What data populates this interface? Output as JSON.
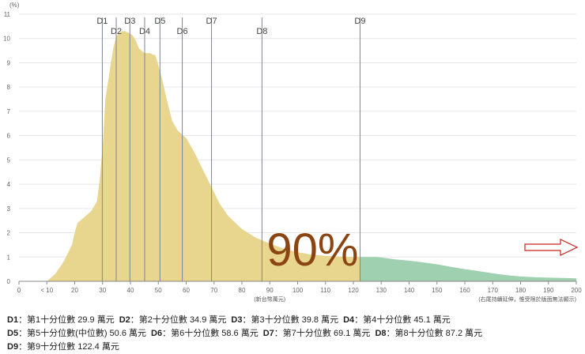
{
  "chart_data": {
    "type": "area",
    "y_unit_label": "(%)",
    "x_unit_label": "(新台幣萬元)",
    "x_note": "(右尾持續延伸，惟受限於版面無法顯示)",
    "x_ticks": [
      "0",
      "< 10",
      "20",
      "30",
      "40",
      "50",
      "60",
      "70",
      "80",
      "90",
      "100",
      "110",
      "120",
      "130",
      "140",
      "150",
      "160",
      "170",
      "180",
      "190",
      "200"
    ],
    "y_ticks": [
      0,
      1,
      2,
      3,
      4,
      5,
      6,
      7,
      8,
      9,
      10,
      11
    ],
    "xlim": [
      0,
      200
    ],
    "ylim": [
      0,
      11
    ],
    "series": [
      {
        "fill": "#e8d58e",
        "x": [
          10,
          13,
          16,
          19,
          20,
          21,
          23,
          26,
          28,
          29,
          30,
          31,
          33,
          34,
          35,
          36,
          37,
          38,
          39,
          40,
          41,
          42,
          43,
          45,
          47,
          49,
          51,
          53,
          55,
          57,
          60,
          63,
          66,
          69,
          72,
          75,
          80,
          85,
          90,
          95,
          100,
          105,
          110,
          115,
          120,
          122.4
        ],
        "y": [
          0,
          0.3,
          0.8,
          1.5,
          2.0,
          2.4,
          2.6,
          2.9,
          3.3,
          4.2,
          5.5,
          7.5,
          9.0,
          9.7,
          10.1,
          10.25,
          10.3,
          10.3,
          10.25,
          10.2,
          10.1,
          9.9,
          9.6,
          9.4,
          9.4,
          9.3,
          8.5,
          7.5,
          6.6,
          6.2,
          5.9,
          5.3,
          4.6,
          3.9,
          3.2,
          2.7,
          2.15,
          1.8,
          1.55,
          1.35,
          1.2,
          1.1,
          1.05,
          1.02,
          1.0,
          1.0
        ]
      },
      {
        "fill": "#9fd1b0",
        "x": [
          122.4,
          125,
          128,
          130,
          135,
          140,
          145,
          150,
          155,
          160,
          165,
          170,
          175,
          180,
          185,
          190,
          195,
          200
        ],
        "y": [
          1.0,
          1.0,
          1.0,
          0.98,
          0.9,
          0.85,
          0.78,
          0.7,
          0.6,
          0.5,
          0.42,
          0.33,
          0.25,
          0.2,
          0.17,
          0.15,
          0.14,
          0.12
        ]
      }
    ],
    "deciles": [
      {
        "label": "D1",
        "value": 29.9
      },
      {
        "label": "D2",
        "value": 34.9
      },
      {
        "label": "D3",
        "value": 39.8
      },
      {
        "label": "D4",
        "value": 45.1
      },
      {
        "label": "D5",
        "value": 50.6
      },
      {
        "label": "D6",
        "value": 58.6
      },
      {
        "label": "D7",
        "value": 69.1
      },
      {
        "label": "D8",
        "value": 87.2
      },
      {
        "label": "D9",
        "value": 122.4
      }
    ],
    "annotation_text": "90%",
    "arrow_color": "#cc2222"
  },
  "legend": {
    "rows": [
      [
        {
          "key": "D1",
          "text": "：第1十分位數 29.9 萬元"
        },
        {
          "key": "D2",
          "text": "：第2十分位數 34.9 萬元"
        },
        {
          "key": "D3",
          "text": "：第3十分位數 39.8 萬元"
        },
        {
          "key": "D4",
          "text": "：第4十分位數 45.1 萬元"
        }
      ],
      [
        {
          "key": "D5",
          "text": "：第5十分位數(中位數) 50.6 萬元"
        },
        {
          "key": "D6",
          "text": "：第6十分位數 58.6 萬元"
        },
        {
          "key": "D7",
          "text": "：第7十分位數 69.1 萬元"
        },
        {
          "key": "D8",
          "text": "：第8十分位數 87.2 萬元"
        }
      ],
      [
        {
          "key": "D9",
          "text": "：第9十分位數 122.4 萬元"
        }
      ]
    ]
  }
}
